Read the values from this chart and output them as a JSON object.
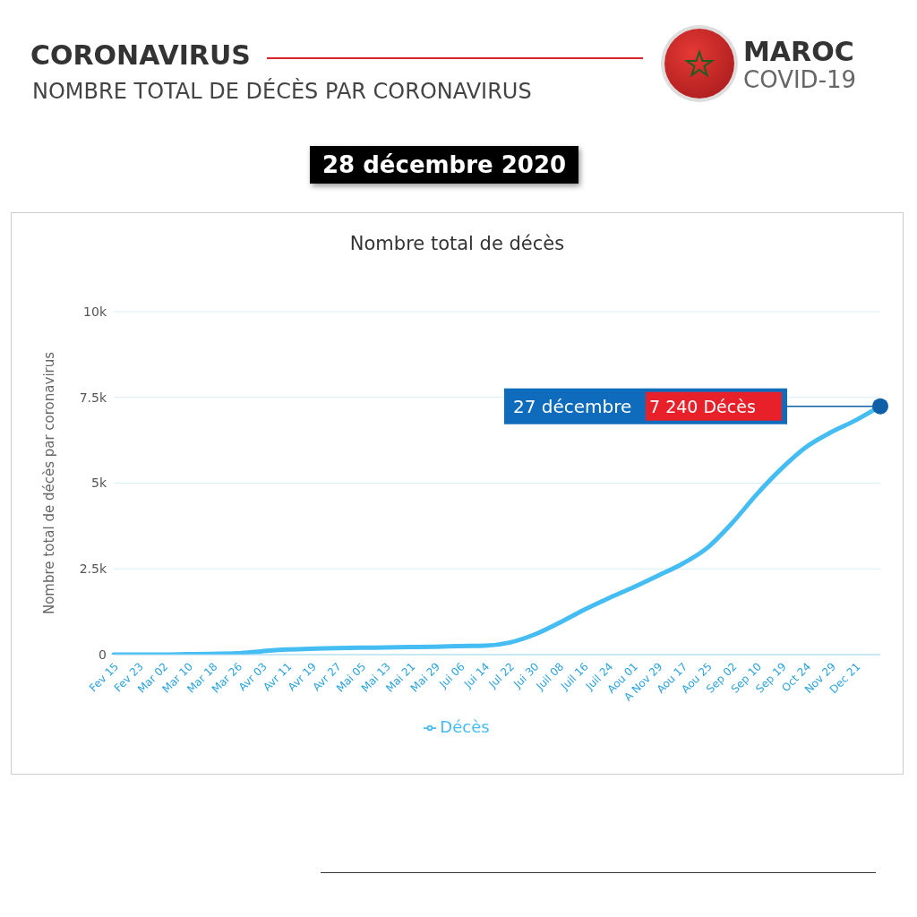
{
  "chart_data": {
    "type": "line",
    "title": "CORONAVIRUS",
    "subtitle": "NOMBRE TOTAL DE DÉCÈS PAR CORONAVIRUS",
    "annotations": [
      "MAROC",
      "COVID-19",
      "28 décembre 2020",
      "Nombre total de décès",
      "27 décembre",
      "7 240 Décès"
    ],
    "ylabel": "Nombre total de décès par coronavirus",
    "categories": [
      "Fev 15",
      "Fev 23",
      "Mar 02",
      "Mar 10",
      "Mar 18",
      "Mar 26",
      "Avr 03",
      "Avr 11",
      "Avr 19",
      "Avr 27",
      "Mai 05",
      "Mai 13",
      "Mai 21",
      "Mai 29",
      "Jui 06",
      "Jui 14",
      "Jul 22",
      "Jui 30",
      "Juil 08",
      "Juil 16",
      "Juil 24",
      "Aou 01",
      "A Nov 29",
      "Aou 17",
      "Aou 25",
      "Sep 02",
      "Sep 10",
      "Sep 19",
      "Oct 24",
      "Nov 29",
      "Dec 21",
      null
    ],
    "series": [
      {
        "name": "Décès",
        "color": "#45bdf2",
        "values": [
          0,
          0,
          0,
          10,
          20,
          40,
          100,
          150,
          170,
          190,
          200,
          210,
          220,
          230,
          250,
          260,
          350,
          580,
          920,
          1300,
          1640,
          1960,
          2300,
          2650,
          3110,
          3830,
          4670,
          5420,
          6050,
          6480,
          6830,
          7240
        ]
      }
    ],
    "ylim": [
      0,
      10000
    ],
    "yticks": [
      {
        "value": 0,
        "label": "0"
      },
      {
        "value": 2500,
        "label": "2.5k"
      },
      {
        "value": 5000,
        "label": "5k"
      },
      {
        "value": 7500,
        "label": "7.5k"
      },
      {
        "value": 10000,
        "label": "10k"
      }
    ],
    "grid": "y",
    "legend": "bottom",
    "marker": "none",
    "line_style": "solid"
  }
}
